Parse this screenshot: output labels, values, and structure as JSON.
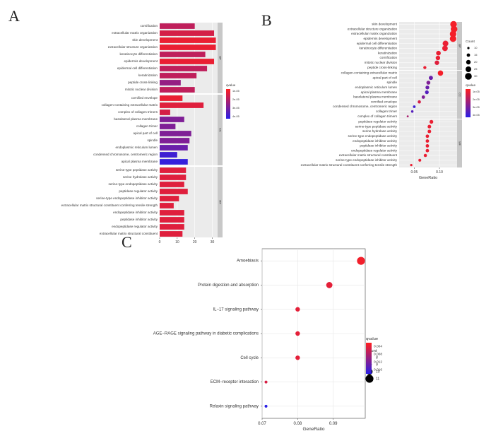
{
  "panels": {
    "a": "A",
    "b": "B",
    "c": "C"
  },
  "colors": {
    "high": "#ff1f1f",
    "low": "#2a1fe6",
    "strip": "#c8c8c8",
    "panel_bg": "#ebebeb",
    "grid": "#ffffff"
  },
  "chart_data": [
    {
      "panel": "A",
      "type": "bar",
      "orientation": "horizontal",
      "xlim": [
        0,
        33
      ],
      "xticks": [
        "0",
        "10",
        "20",
        "30"
      ],
      "legend": {
        "title": "qvalue",
        "labels": [
          "1e-05",
          "2e-05",
          "3e-05",
          "4e-05"
        ]
      },
      "groups": [
        {
          "name": "BP",
          "categories": [
            "cornification",
            "extracellular matrix organization",
            "skin development",
            "extracellular structure organization",
            "keratinocyte differentiation",
            "epidermis development",
            "epidermal cell differentiation",
            "keratinization",
            "peptide cross-linking",
            "mitotic nuclear division"
          ],
          "values": [
            20,
            31,
            32,
            32,
            26,
            31,
            27,
            21,
            12,
            20
          ],
          "qvalues": [
            0.3,
            0.2,
            0.1,
            0.1,
            0.3,
            0.1,
            0.3,
            0.3,
            0.5,
            0.3
          ]
        },
        {
          "name": "CC",
          "categories": [
            "cornified envelope",
            "collagen-containing extracellular matrix",
            "complex of collagen trimers",
            "basolateral plasma membrane",
            "collagen trimer",
            "apical part of cell",
            "spindle",
            "endoplasmic reticulum lumen",
            "condensed chromosome, centromeric region",
            "apical plasma membrane"
          ],
          "values": [
            13,
            25,
            6,
            14,
            9,
            18,
            17,
            16,
            10,
            16
          ],
          "qvalues": [
            0.1,
            0.15,
            0.2,
            0.6,
            0.6,
            0.6,
            0.6,
            0.7,
            0.9,
            0.95
          ]
        },
        {
          "name": "MF",
          "categories": [
            "serine-type peptidase activity",
            "serine hydrolase activity",
            "serine-type endopeptidase activity",
            "peptidase regulator activity",
            "serine-type endopeptidase inhibitor activity",
            "extracellular matrix structural constituent conferring tensile strength",
            "endopeptidase inhibitor activity",
            "peptidase inhibitor activity",
            "endopeptidase regulator activity",
            "extracellular matrix structural constituent"
          ],
          "values": [
            15,
            15,
            14,
            16,
            11,
            8,
            14,
            14,
            14,
            13
          ],
          "qvalues": [
            0.15,
            0.15,
            0.15,
            0.15,
            0.15,
            0.15,
            0.15,
            0.15,
            0.15,
            0.15
          ]
        }
      ]
    },
    {
      "panel": "B",
      "type": "scatter",
      "xlabel": "GeneRatio",
      "xlim": [
        0.02,
        0.135
      ],
      "xticks": [
        0.05,
        0.1
      ],
      "xtick_labels": [
        "0.05",
        "0.10"
      ],
      "legend": {
        "size_title": "Count",
        "size_labels": [
          "10",
          "15",
          "20",
          "25",
          "30"
        ],
        "color_title": "qvalue",
        "color_labels": [
          "1e-05",
          "2e-05",
          "3e-05",
          "4e-05"
        ]
      },
      "groups": [
        {
          "name": "BP",
          "categories": [
            "skin development",
            "extracellular structure organization",
            "extracellular matrix organization",
            "epidermis development",
            "epidermal cell differentiation",
            "keratinocyte differentiation",
            "keratinization",
            "cornification",
            "mitotic nuclear division",
            "peptide cross-linking"
          ],
          "x": [
            0.128,
            0.129,
            0.127,
            0.127,
            0.112,
            0.111,
            0.098,
            0.097,
            0.095,
            0.071
          ],
          "counts": [
            32,
            32,
            31,
            31,
            27,
            26,
            21,
            20,
            20,
            12
          ],
          "qvalues": [
            0.05,
            0.05,
            0.05,
            0.05,
            0.1,
            0.1,
            0.1,
            0.1,
            0.15,
            0.1
          ]
        },
        {
          "name": "CC",
          "categories": [
            "collagen-containing extracellular matrix",
            "apical part of cell",
            "spindle",
            "endoplasmic reticulum lumen",
            "apical plasma membrane",
            "basolateral plasma membrane",
            "cornified envelope",
            "condensed chromosome, centromeric region",
            "collagen trimer",
            "complex of collagen trimers"
          ],
          "x": [
            0.102,
            0.083,
            0.078,
            0.076,
            0.075,
            0.068,
            0.06,
            0.05,
            0.046,
            0.037
          ],
          "counts": [
            25,
            18,
            17,
            16,
            16,
            14,
            13,
            10,
            9,
            6
          ],
          "qvalues": [
            0.05,
            0.7,
            0.6,
            0.7,
            0.8,
            0.6,
            0.2,
            0.9,
            0.8,
            0.4
          ]
        },
        {
          "name": "MF",
          "categories": [
            "peptidase regulator activity",
            "serine-type peptidase activity",
            "serine hydrolase activity",
            "serine-type endopeptidase activity",
            "endopeptidase inhibitor activity",
            "peptidase inhibitor activity",
            "endopeptidase regulator activity",
            "extracellular matrix structural constituent",
            "serine-type endopeptidase inhibitor activity",
            "extracellular matrix structural constituent conferring tensile strength"
          ],
          "x": [
            0.084,
            0.08,
            0.08,
            0.076,
            0.076,
            0.076,
            0.076,
            0.072,
            0.061,
            0.044
          ],
          "counts": [
            16,
            15,
            15,
            14,
            14,
            14,
            14,
            13,
            11,
            8
          ],
          "qvalues": [
            0.1,
            0.1,
            0.1,
            0.1,
            0.1,
            0.1,
            0.1,
            0.1,
            0.1,
            0.1
          ]
        }
      ]
    },
    {
      "panel": "C",
      "type": "scatter",
      "xlabel": "GeneRatio",
      "xlim": [
        0.07,
        0.099
      ],
      "xticks": [
        0.07,
        0.08,
        0.09
      ],
      "xtick_labels": [
        "0.07",
        "0.08",
        "0.09"
      ],
      "categories": [
        "Amoebiasis",
        "Protein digestion and absorption",
        "IL−17 signaling pathway",
        "AGE−RAGE signaling pathway in diabetic complications",
        "Cell cycle",
        "ECM−receptor interaction",
        "Relaxin signaling pathway"
      ],
      "x": [
        0.0978,
        0.0889,
        0.08,
        0.08,
        0.08,
        0.0711,
        0.0711
      ],
      "counts": [
        11,
        10,
        9,
        9,
        9,
        8,
        8
      ],
      "qvalues": [
        0.001,
        0.002,
        0.002,
        0.002,
        0.002,
        0.003,
        0.016
      ],
      "legend": {
        "size_title": "Count",
        "size_labels": [
          "8",
          "9",
          "10",
          "11"
        ],
        "color_title": "qvalue",
        "color_labels": [
          "0.004",
          "0.008",
          "0.012",
          "0.016"
        ]
      }
    }
  ]
}
